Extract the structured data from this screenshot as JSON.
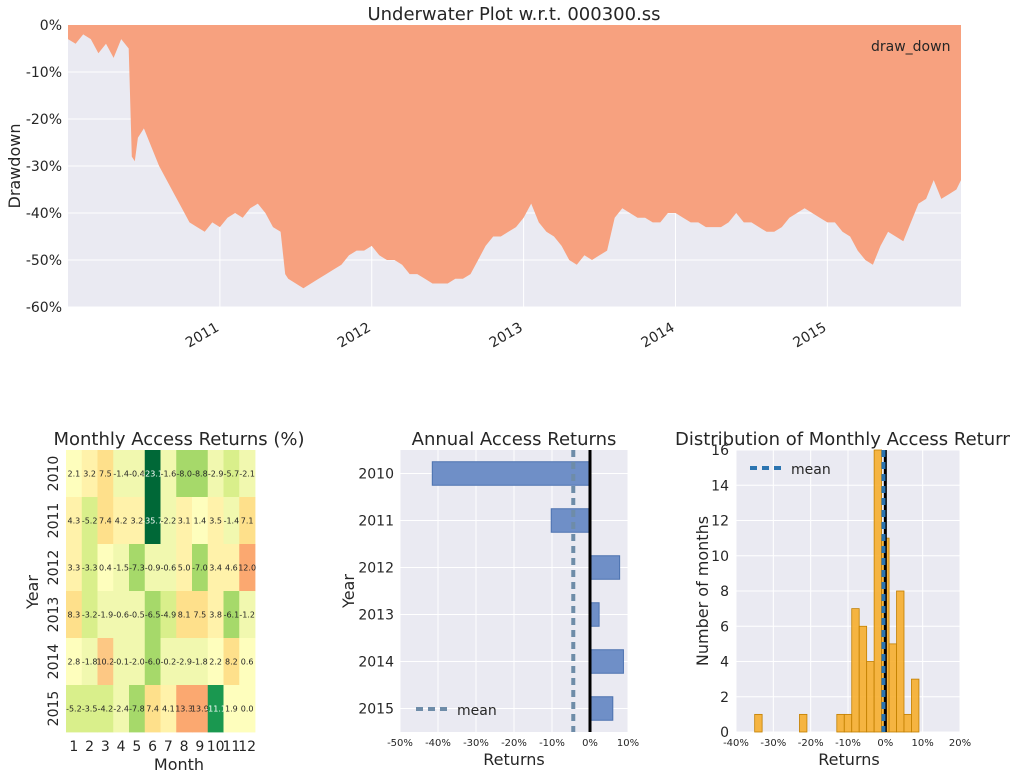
{
  "colors": {
    "axes_bg": "#EAEAF2",
    "grid": "#FFFFFF",
    "drawdown_fill": "#F7A17F",
    "bar_fill": "#6F8FC7",
    "bar_edge": "#4C72B0",
    "mean_line": "#6E8CA8",
    "hist_fill": "#F6AE2D",
    "hist_edge": "#C17F00",
    "hist_mean": "#2B74B0",
    "zero_line": "#000000"
  },
  "chart_data": [
    {
      "id": "underwater",
      "type": "area",
      "title": "Underwater Plot w.r.t. 000300.ss",
      "xlabel": "",
      "ylabel": "Drawdown",
      "legend": "draw_down",
      "legend_position": "top-right",
      "xlim": [
        2010.0,
        2015.88
      ],
      "ylim": [
        -60,
        0
      ],
      "yticks": [
        0,
        -10,
        -20,
        -30,
        -40,
        -50,
        -60
      ],
      "ytick_labels": [
        "0%",
        "-10%",
        "-20%",
        "-30%",
        "-40%",
        "-50%",
        "-60%"
      ],
      "xticks": [
        2011,
        2012,
        2013,
        2014,
        2015
      ],
      "xtick_labels": [
        "2011",
        "2012",
        "2013",
        "2014",
        "2015"
      ],
      "x": [
        2010.0,
        2010.05,
        2010.1,
        2010.15,
        2010.2,
        2010.25,
        2010.3,
        2010.35,
        2010.4,
        2010.42,
        2010.44,
        2010.46,
        2010.5,
        2010.55,
        2010.6,
        2010.65,
        2010.7,
        2010.75,
        2010.8,
        2010.85,
        2010.9,
        2010.95,
        2011.0,
        2011.05,
        2011.1,
        2011.15,
        2011.2,
        2011.25,
        2011.3,
        2011.35,
        2011.4,
        2011.43,
        2011.45,
        2011.5,
        2011.55,
        2011.6,
        2011.65,
        2011.7,
        2011.75,
        2011.8,
        2011.85,
        2011.9,
        2011.95,
        2012.0,
        2012.05,
        2012.1,
        2012.15,
        2012.2,
        2012.25,
        2012.3,
        2012.35,
        2012.4,
        2012.45,
        2012.5,
        2012.55,
        2012.6,
        2012.65,
        2012.7,
        2012.75,
        2012.8,
        2012.85,
        2012.9,
        2012.95,
        2013.0,
        2013.05,
        2013.1,
        2013.15,
        2013.2,
        2013.25,
        2013.3,
        2013.35,
        2013.4,
        2013.45,
        2013.5,
        2013.55,
        2013.6,
        2013.65,
        2013.7,
        2013.75,
        2013.8,
        2013.85,
        2013.9,
        2013.95,
        2014.0,
        2014.05,
        2014.1,
        2014.15,
        2014.2,
        2014.25,
        2014.3,
        2014.35,
        2014.4,
        2014.45,
        2014.5,
        2014.55,
        2014.6,
        2014.65,
        2014.7,
        2014.75,
        2014.8,
        2014.85,
        2014.9,
        2014.95,
        2015.0,
        2015.05,
        2015.1,
        2015.15,
        2015.2,
        2015.25,
        2015.3,
        2015.35,
        2015.4,
        2015.45,
        2015.5,
        2015.55,
        2015.6,
        2015.65,
        2015.7,
        2015.75,
        2015.8,
        2015.85,
        2015.88
      ],
      "values": [
        -3,
        -4,
        -2,
        -3,
        -6,
        -4,
        -7,
        -3,
        -5,
        -28,
        -29,
        -24,
        -22,
        -26,
        -30,
        -33,
        -36,
        -39,
        -42,
        -43,
        -44,
        -42,
        -43,
        -41,
        -40,
        -41,
        -39,
        -38,
        -40,
        -43,
        -44,
        -53,
        -54,
        -55,
        -56,
        -55,
        -54,
        -53,
        -52,
        -51,
        -49,
        -48,
        -48,
        -47,
        -49,
        -50,
        -50,
        -51,
        -53,
        -53,
        -54,
        -55,
        -55,
        -55,
        -54,
        -54,
        -53,
        -50,
        -47,
        -45,
        -45,
        -44,
        -43,
        -41,
        -38,
        -42,
        -44,
        -45,
        -47,
        -50,
        -51,
        -49,
        -50,
        -49,
        -48,
        -41,
        -39,
        -40,
        -41,
        -41,
        -42,
        -42,
        -40,
        -40,
        -41,
        -42,
        -42,
        -43,
        -43,
        -43,
        -42,
        -40,
        -42,
        -42,
        -43,
        -44,
        -44,
        -43,
        -41,
        -40,
        -39,
        -40,
        -41,
        -42,
        -42,
        -44,
        -45,
        -48,
        -50,
        -51,
        -47,
        -44,
        -45,
        -46,
        -42,
        -38,
        -37,
        -33,
        -37,
        -36,
        -35,
        -33
      ]
    },
    {
      "id": "monthly-heatmap",
      "type": "heatmap",
      "title": "Monthly Access Returns (%)",
      "xlabel": "Month",
      "ylabel": "Year",
      "months": [
        "1",
        "2",
        "3",
        "4",
        "5",
        "6",
        "7",
        "8",
        "9",
        "10",
        "11",
        "12"
      ],
      "years": [
        "2010",
        "2011",
        "2012",
        "2013",
        "2014",
        "2015"
      ],
      "values": [
        [
          2.1,
          3.2,
          7.5,
          -1.4,
          -0.4,
          -23.1,
          -1.6,
          -8.0,
          -8.8,
          -2.9,
          -5.7,
          -2.1
        ],
        [
          4.3,
          -5.2,
          7.4,
          4.2,
          3.2,
          -35.7,
          -2.2,
          3.1,
          1.4,
          3.5,
          -1.4,
          7.1
        ],
        [
          3.3,
          -3.3,
          0.4,
          -1.5,
          -7.3,
          -0.9,
          -0.6,
          5.0,
          -7.0,
          3.4,
          4.6,
          12.0
        ],
        [
          8.3,
          -3.2,
          -1.9,
          -0.6,
          -0.5,
          -6.5,
          -4.9,
          8.1,
          7.5,
          3.8,
          -6.1,
          -1.2
        ],
        [
          2.8,
          -1.8,
          10.2,
          -0.1,
          -2.0,
          -6.0,
          -0.2,
          -2.9,
          -1.8,
          2.2,
          8.2,
          0.6
        ],
        [
          -5.2,
          -3.5,
          -4.2,
          -2.4,
          -7.8,
          7.4,
          4.1,
          13.3,
          13.9,
          -11.1,
          1.9,
          0.0
        ]
      ],
      "labels": [
        [
          "2.1",
          "3.2",
          "7.5",
          "-1.4",
          "-0.4",
          "-23.1",
          "-1.6",
          "-8.0",
          "-8.8",
          "-2.9",
          "-5.7",
          "-2.1"
        ],
        [
          "4.3",
          "-5.2",
          "7.4",
          "4.2",
          "3.2",
          "-35.7",
          "-2.2",
          "3.1",
          "1.4",
          "3.5",
          "-1.4",
          "7.1"
        ],
        [
          "3.3",
          "-3.3",
          "0.4",
          "-1.5",
          "-7.3",
          "-0.9",
          "-0.6",
          "5.0",
          "-7.0",
          "3.4",
          "4.6",
          "12.0"
        ],
        [
          "8.3",
          "-3.2",
          "-1.9",
          "-0.6",
          "-0.5",
          "-6.5",
          "-4.9",
          "8.1",
          "7.5",
          "3.8",
          "-6.1",
          "-1.2"
        ],
        [
          "2.8",
          "-1.8",
          "10.2",
          "-0.1",
          "-2.0",
          "-6.0",
          "-0.2",
          "-2.9",
          "-1.8",
          "2.2",
          "8.2",
          "0.6"
        ],
        [
          "-5.2",
          "-3.5",
          "-4.2",
          "-2.4",
          "-7.8",
          "7.4",
          "4.1",
          "13.3",
          "13.9",
          "-11.1",
          "1.9",
          "0.0"
        ]
      ]
    },
    {
      "id": "annual-returns",
      "type": "bar",
      "orientation": "horizontal",
      "title": "Annual Access Returns",
      "xlabel": "Returns",
      "ylabel": "Year",
      "categories": [
        "2010",
        "2011",
        "2012",
        "2013",
        "2014",
        "2015"
      ],
      "values": [
        -41.5,
        -10.2,
        7.8,
        2.4,
        8.8,
        6.0
      ],
      "mean": -4.4,
      "legend": "mean",
      "legend_position": "bottom-left",
      "xlim": [
        -50,
        10
      ],
      "xticks": [
        -50,
        -40,
        -30,
        -20,
        -10,
        0,
        10
      ],
      "xtick_labels": [
        "-50%",
        "-40%",
        "-30%",
        "-20%",
        "-10%",
        "0%",
        "10%"
      ]
    },
    {
      "id": "monthly-distribution",
      "type": "bar",
      "subtype": "histogram",
      "title": "Distribution of Monthly Access Returns",
      "xlabel": "Returns",
      "ylabel": "Number of months",
      "bin_edges": [
        -37,
        -35,
        -33,
        -31,
        -29,
        -27,
        -25,
        -23,
        -21,
        -19,
        -17,
        -15,
        -13,
        -11,
        -9,
        -7,
        -5,
        -3,
        -1,
        1,
        3,
        5,
        7,
        9,
        11,
        13,
        15
      ],
      "counts": [
        0,
        1,
        0,
        0,
        0,
        0,
        0,
        1,
        0,
        0,
        0,
        0,
        1,
        1,
        7,
        6,
        4,
        16,
        11,
        5,
        8,
        1,
        3,
        0,
        0,
        0
      ],
      "mean": -0.5,
      "legend": "mean",
      "legend_position": "top-left",
      "xlim": [
        -40,
        20
      ],
      "ylim": [
        0,
        16
      ],
      "xticks": [
        -40,
        -30,
        -20,
        -10,
        0,
        10,
        20
      ],
      "xtick_labels": [
        "-40%",
        "-30%",
        "-20%",
        "-10%",
        "0%",
        "10%",
        "20%"
      ],
      "yticks": [
        0,
        2,
        4,
        6,
        8,
        10,
        12,
        14,
        16
      ],
      "ytick_labels": [
        "0",
        "2",
        "4",
        "6",
        "8",
        "10",
        "12",
        "14",
        "16"
      ]
    }
  ]
}
